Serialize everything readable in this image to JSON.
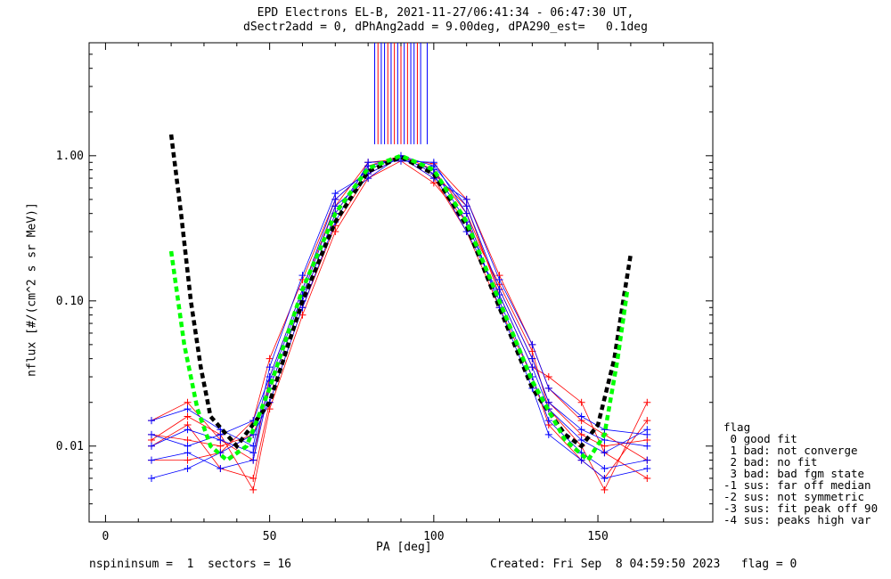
{
  "title_line1": "EPD Electrons EL-B, 2021-11-27/06:41:34 - 06:47:30 UT,",
  "title_line2": "dSectr2add = 0, dPhAng2add = 9.00deg, dPA290_est=   0.1deg",
  "footer_left": "nspininsum =  1  sectors = 16",
  "footer_right": "Created: Fri Sep  8 04:59:50 2023   flag = 0",
  "legend": {
    "title": "flag",
    "items": [
      " 0 good fit",
      " 1 bad: not converge",
      " 2 bad: no fit",
      " 3 bad: bad fgm state",
      "-1 sus: far off median",
      "-2 sus: not symmetric",
      "-3 sus: fit peak off 90",
      "-4 sus: peaks high var"
    ]
  },
  "colors": {
    "red": "#ff0000",
    "blue": "#0000ff",
    "green": "#00ff00",
    "black": "#000000"
  },
  "chart_data": {
    "type": "scatter",
    "xlabel": "PA [deg]",
    "ylabel": "nflux [#/(cm^2 s sr MeV)]",
    "xlim": [
      -5,
      185
    ],
    "ylim": [
      0.003,
      6
    ],
    "yscale": "log",
    "xticks": [
      0,
      50,
      100,
      150
    ],
    "yticks": [
      0.01,
      0.1,
      1.0
    ],
    "ytick_labels": [
      "0.01",
      "0.10",
      "1.00"
    ],
    "series": [
      {
        "color": "red",
        "pa": [
          14,
          25,
          35,
          45,
          50,
          60,
          70,
          80,
          90,
          100,
          110,
          120,
          130,
          135,
          145,
          152,
          165
        ],
        "profiles": [
          [
            0.012,
            0.011,
            0.01,
            0.012,
            0.025,
            0.1,
            0.4,
            0.85,
            1.0,
            0.8,
            0.4,
            0.12,
            0.04,
            0.02,
            0.012,
            0.01,
            0.011
          ],
          [
            0.01,
            0.014,
            0.007,
            0.006,
            0.02,
            0.09,
            0.33,
            0.75,
            0.98,
            0.7,
            0.3,
            0.09,
            0.03,
            0.014,
            0.008,
            0.006,
            0.015
          ],
          [
            0.015,
            0.02,
            0.011,
            0.008,
            0.03,
            0.12,
            0.45,
            0.9,
            0.95,
            0.88,
            0.5,
            0.15,
            0.05,
            0.025,
            0.015,
            0.012,
            0.008
          ],
          [
            0.008,
            0.008,
            0.009,
            0.015,
            0.04,
            0.14,
            0.5,
            0.8,
            1.0,
            0.75,
            0.45,
            0.11,
            0.035,
            0.03,
            0.02,
            0.009,
            0.006
          ],
          [
            0.011,
            0.016,
            0.012,
            0.005,
            0.018,
            0.08,
            0.3,
            0.7,
            0.92,
            0.65,
            0.35,
            0.13,
            0.045,
            0.018,
            0.01,
            0.005,
            0.02
          ]
        ]
      },
      {
        "color": "blue",
        "pa": [
          14,
          25,
          35,
          45,
          50,
          60,
          70,
          80,
          90,
          100,
          110,
          120,
          130,
          135,
          145,
          152,
          165
        ],
        "profiles": [
          [
            0.012,
            0.01,
            0.012,
            0.015,
            0.03,
            0.12,
            0.5,
            0.8,
            1.0,
            0.85,
            0.45,
            0.12,
            0.04,
            0.02,
            0.013,
            0.011,
            0.01
          ],
          [
            0.008,
            0.009,
            0.007,
            0.008,
            0.025,
            0.1,
            0.4,
            0.85,
            0.95,
            0.8,
            0.35,
            0.1,
            0.03,
            0.015,
            0.009,
            0.007,
            0.008
          ],
          [
            0.015,
            0.018,
            0.013,
            0.01,
            0.035,
            0.15,
            0.55,
            0.75,
            0.98,
            0.7,
            0.5,
            0.14,
            0.05,
            0.025,
            0.016,
            0.013,
            0.012
          ],
          [
            0.006,
            0.007,
            0.009,
            0.012,
            0.02,
            0.09,
            0.35,
            0.9,
            0.92,
            0.9,
            0.4,
            0.09,
            0.025,
            0.012,
            0.008,
            0.006,
            0.007
          ],
          [
            0.01,
            0.013,
            0.011,
            0.009,
            0.028,
            0.11,
            0.45,
            0.7,
            1.0,
            0.75,
            0.3,
            0.11,
            0.035,
            0.018,
            0.011,
            0.009,
            0.013
          ]
        ]
      }
    ],
    "fit_black": {
      "pa": [
        20,
        23,
        26,
        29,
        32,
        40,
        50,
        60,
        70,
        80,
        90,
        100,
        110,
        120,
        130,
        140,
        145,
        150,
        155,
        158,
        160
      ],
      "values": [
        1.4,
        0.4,
        0.1,
        0.035,
        0.016,
        0.01,
        0.02,
        0.1,
        0.35,
        0.78,
        0.98,
        0.75,
        0.33,
        0.09,
        0.025,
        0.012,
        0.01,
        0.014,
        0.04,
        0.11,
        0.21
      ]
    },
    "fit_green": {
      "pa": [
        20,
        24,
        28,
        32,
        37,
        43,
        50,
        60,
        70,
        80,
        90,
        100,
        110,
        120,
        130,
        140,
        147,
        152,
        156,
        159
      ],
      "values": [
        0.22,
        0.05,
        0.018,
        0.01,
        0.008,
        0.01,
        0.025,
        0.12,
        0.4,
        0.82,
        1.0,
        0.8,
        0.35,
        0.1,
        0.028,
        0.011,
        0.008,
        0.012,
        0.04,
        0.12
      ]
    },
    "peak_lines": {
      "pa": [
        82,
        83,
        84,
        85,
        86,
        87,
        88,
        89,
        90,
        91,
        92,
        93,
        94,
        95,
        96,
        98
      ],
      "colors": [
        "blue",
        "red",
        "blue",
        "blue",
        "red",
        "blue",
        "red",
        "blue",
        "red",
        "blue",
        "red",
        "blue",
        "blue",
        "red",
        "blue",
        "blue"
      ]
    }
  }
}
